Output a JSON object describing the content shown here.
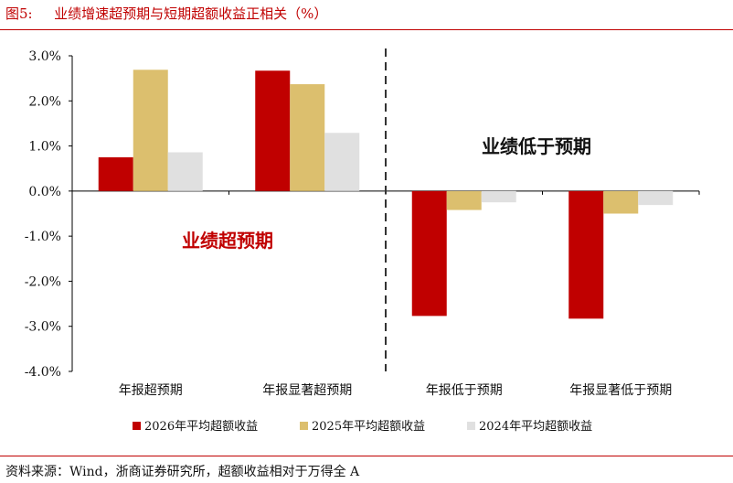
{
  "header": {
    "figure_label": "图5:",
    "title": "业绩增速超预期与短期超额收益正相关（%）"
  },
  "footer": {
    "source": "资料来源：Wind，浙商证券研究所，超额收益相对于万得全 A"
  },
  "colors": {
    "brand_red": "#c00000",
    "series": [
      "#c00000",
      "#dcbf6e",
      "#e0e0e0"
    ]
  },
  "chart_data": {
    "type": "bar",
    "categories": [
      "年报超预期",
      "年报显著超预期",
      "年报低于预期",
      "年报显著低于预期"
    ],
    "series": [
      {
        "name": "2026年平均超额收益",
        "values": [
          0.75,
          2.67,
          -2.77,
          -2.83
        ]
      },
      {
        "name": "2025年平均超额收益",
        "values": [
          2.69,
          2.37,
          -0.42,
          -0.5
        ]
      },
      {
        "name": "2024年平均超额收益",
        "values": [
          0.86,
          1.29,
          -0.25,
          -0.31
        ]
      }
    ],
    "ylim": [
      -4.0,
      3.0
    ],
    "yticks": [
      "3.0%",
      "2.0%",
      "1.0%",
      "0.0%",
      "-1.0%",
      "-2.0%",
      "-3.0%",
      "-4.0%"
    ],
    "ytick_values": [
      3,
      2,
      1,
      0,
      -1,
      -2,
      -3,
      -4
    ],
    "annotations": [
      {
        "text": "业绩超预期",
        "color": "#c00000"
      },
      {
        "text": "业绩低于预期",
        "color": "#111111"
      }
    ],
    "divider_after_category": 1,
    "legend_position": "bottom",
    "grid": false
  }
}
